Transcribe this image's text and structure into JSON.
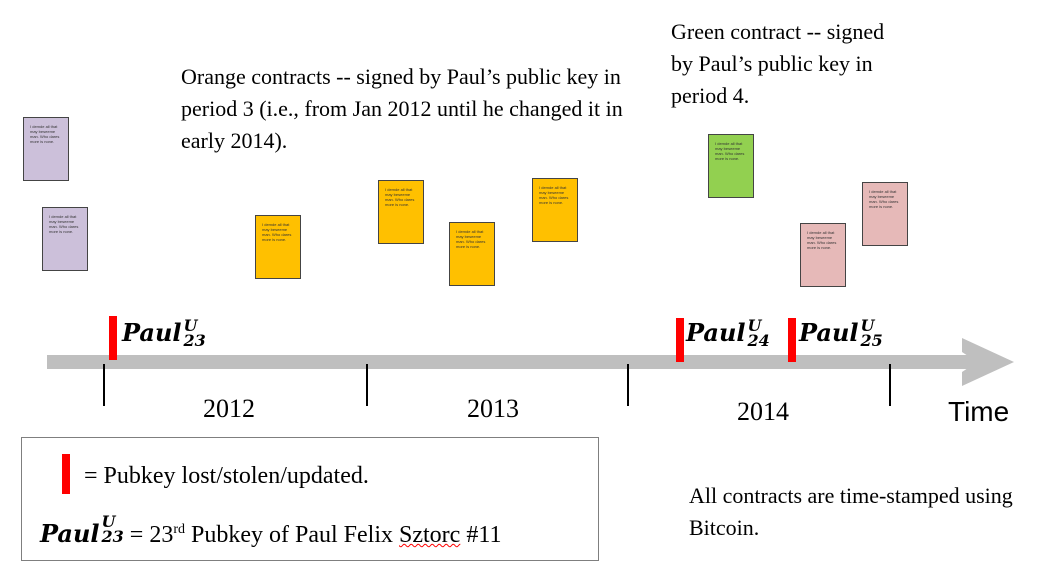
{
  "annotations": {
    "orange": "Orange contracts -- signed by Paul’s public key in period 3 (i.e., from Jan 2012 until he changed it in early 2014).",
    "green": "Green contract -- signed by Paul’s public key in period 4.",
    "timestamp": "All contracts are time-stamped using Bitcoin."
  },
  "contract_text": "I demde all that may beseeme man. Who dares more is none.",
  "timeline": {
    "axis_label": "Time",
    "years": [
      "2012",
      "2013",
      "2014"
    ],
    "keys": [
      {
        "base": "Paul",
        "sup": "U",
        "sub": "23"
      },
      {
        "base": "Paul",
        "sup": "U",
        "sub": "24"
      },
      {
        "base": "Paul",
        "sup": "U",
        "sub": "25"
      }
    ]
  },
  "legend": {
    "marker_text": "= Pubkey lost/stolen/updated.",
    "key_base": "Paul",
    "key_sup": "U",
    "key_sub": "23",
    "def_prefix": "= 23",
    "def_ordinal": "rd",
    "def_middle": " Pubkey of Paul Felix ",
    "def_name": "Sztorc",
    "def_suffix": " #11"
  },
  "colors": {
    "purple": "#ccc0da",
    "orange": "#ffc000",
    "green": "#92d050",
    "pink": "#e6b9b8",
    "red_marker": "#ff0000",
    "arrow": "#bfbfbf"
  }
}
